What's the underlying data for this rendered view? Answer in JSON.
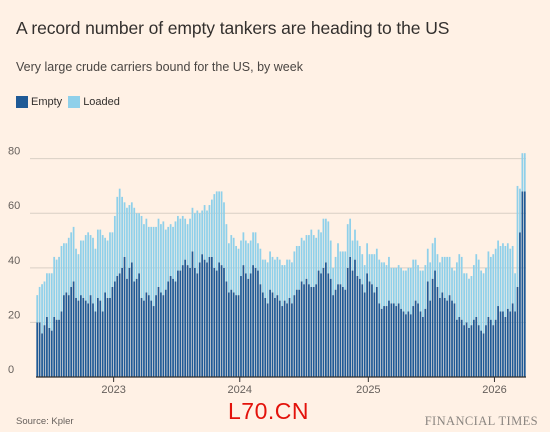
{
  "title": "A record number of empty tankers are heading to the US",
  "subtitle": "Very large crude carriers bound for the US, by week",
  "source": "Source: Kpler",
  "brand": "FINANCIAL TIMES",
  "watermark": "L70.CN",
  "colors": {
    "empty": "#1f5a96",
    "loaded": "#8fd0ea",
    "grid": "#d9cfc5",
    "axis": "#33302e",
    "background": "#fff1e5"
  },
  "chart_data": {
    "type": "bar",
    "stacked": true,
    "legend_position": "top-left",
    "grid": true,
    "ylim": [
      0,
      85
    ],
    "yticks": [
      0,
      20,
      40,
      60,
      80
    ],
    "xticks": [
      {
        "label": "2023",
        "week_index": 32
      },
      {
        "label": "2024",
        "week_index": 84
      },
      {
        "label": "2025",
        "week_index": 137
      },
      {
        "label": "2026",
        "week_index": 189
      }
    ],
    "series": [
      {
        "name": "Empty",
        "values": [
          20,
          20,
          16,
          19,
          22,
          18,
          17,
          22,
          21,
          21,
          24,
          30,
          31,
          30,
          33,
          35,
          29,
          28,
          30,
          29,
          28,
          27,
          30,
          27,
          24,
          29,
          28,
          24,
          31,
          29,
          29,
          33,
          35,
          37,
          38,
          40,
          44,
          36,
          40,
          42,
          35,
          36,
          38,
          29,
          28,
          31,
          30,
          28,
          26,
          30,
          33,
          31,
          30,
          32,
          35,
          37,
          36,
          35,
          39,
          39,
          41,
          43,
          41,
          40,
          46,
          40,
          38,
          42,
          45,
          43,
          42,
          44,
          44,
          40,
          39,
          42,
          41,
          40,
          35,
          31,
          32,
          31,
          30,
          30,
          37,
          41,
          38,
          36,
          38,
          41,
          40,
          39,
          34,
          31,
          29,
          27,
          32,
          31,
          29,
          30,
          28,
          26,
          28,
          27,
          29,
          27,
          30,
          32,
          32,
          35,
          34,
          36,
          34,
          33,
          33,
          34,
          39,
          38,
          40,
          42,
          38,
          36,
          30,
          32,
          34,
          34,
          33,
          32,
          40,
          44,
          39,
          43,
          37,
          36,
          34,
          31,
          38,
          35,
          34,
          31,
          33,
          27,
          25,
          26,
          26,
          28,
          27,
          27,
          26,
          27,
          25,
          24,
          23,
          24,
          23,
          26,
          28,
          27,
          24,
          22,
          25,
          35,
          28,
          36,
          39,
          33,
          29,
          31,
          29,
          28,
          30,
          28,
          27,
          21,
          22,
          21,
          19,
          20,
          18,
          19,
          21,
          22,
          19,
          17,
          16,
          19,
          22,
          21,
          19,
          21,
          26,
          24,
          24,
          22,
          25,
          24,
          27,
          24,
          33,
          53,
          68,
          68
        ]
      },
      {
        "name": "Loaded",
        "values": [
          10,
          13,
          18,
          16,
          16,
          20,
          21,
          22,
          22,
          23,
          24,
          19,
          18,
          21,
          20,
          20,
          18,
          17,
          20,
          21,
          24,
          26,
          22,
          24,
          23,
          25,
          26,
          28,
          20,
          21,
          24,
          20,
          24,
          29,
          31,
          26,
          20,
          26,
          23,
          22,
          27,
          24,
          22,
          30,
          28,
          27,
          25,
          27,
          29,
          25,
          25,
          25,
          27,
          22,
          20,
          19,
          19,
          22,
          20,
          19,
          18,
          15,
          15,
          18,
          16,
          20,
          23,
          18,
          16,
          20,
          19,
          19,
          21,
          27,
          29,
          26,
          27,
          24,
          21,
          18,
          20,
          20,
          18,
          17,
          13,
          12,
          12,
          13,
          12,
          12,
          13,
          10,
          13,
          12,
          14,
          15,
          14,
          13,
          14,
          14,
          15,
          15,
          13,
          16,
          14,
          15,
          16,
          16,
          16,
          16,
          16,
          16,
          18,
          21,
          19,
          17,
          15,
          15,
          18,
          16,
          19,
          14,
          10,
          12,
          15,
          12,
          13,
          14,
          16,
          14,
          11,
          11,
          13,
          12,
          11,
          10,
          11,
          10,
          11,
          14,
          14,
          16,
          17,
          16,
          15,
          16,
          13,
          13,
          14,
          14,
          15,
          15,
          16,
          16,
          17,
          17,
          15,
          14,
          15,
          17,
          16,
          12,
          14,
          13,
          12,
          12,
          13,
          13,
          15,
          16,
          14,
          12,
          12,
          21,
          23,
          23,
          19,
          18,
          18,
          18,
          20,
          23,
          24,
          22,
          22,
          21,
          24,
          23,
          26,
          26,
          24,
          24,
          25,
          26,
          24,
          23,
          21,
          14,
          37,
          16,
          14,
          14
        ]
      }
    ]
  }
}
